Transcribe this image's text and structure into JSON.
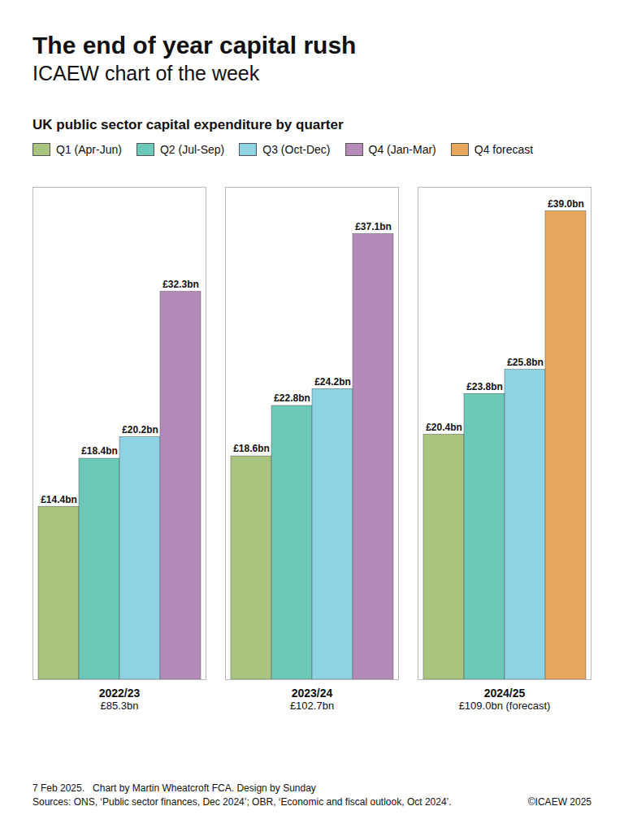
{
  "chart_data": {
    "type": "bar",
    "title": "The end of year capital rush",
    "subtitle": "ICAEW chart of the week",
    "heading": "UK public sector capital expenditure by quarter",
    "categories": [
      "2022/23",
      "2023/24",
      "2024/25"
    ],
    "totals": [
      "£85.3bn",
      "£102.7bn",
      "£109.0bn (forecast)"
    ],
    "series": [
      {
        "name": "Q1 (Apr-Jun)",
        "color": "#a9c47f",
        "values": [
          14.4,
          18.6,
          20.4
        ],
        "value_labels": [
          "£14.4bn",
          "£18.6bn",
          "£20.4bn"
        ]
      },
      {
        "name": "Q2 (Jul-Sep)",
        "color": "#6cc9b9",
        "values": [
          18.4,
          22.8,
          23.8
        ],
        "value_labels": [
          "£18.4bn",
          "£22.8bn",
          "£23.8bn"
        ]
      },
      {
        "name": "Q3 (Oct-Dec)",
        "color": "#8dd3e3",
        "values": [
          20.2,
          24.2,
          25.8
        ],
        "value_labels": [
          "£20.2bn",
          "£24.2bn",
          "£25.8bn"
        ]
      },
      {
        "name": "Q4 (Jan-Mar)",
        "color": "#b48ab8",
        "values": [
          32.3,
          37.1,
          null
        ],
        "value_labels": [
          "£32.3bn",
          "£37.1bn",
          null
        ]
      },
      {
        "name": "Q4 forecast",
        "color": "#e6a65c",
        "values": [
          null,
          null,
          39.0
        ],
        "value_labels": [
          null,
          null,
          "£39.0bn"
        ]
      }
    ],
    "ylim": [
      0,
      41
    ],
    "yticks": [],
    "grid": false,
    "legend": "top",
    "data_labels": true,
    "tick_labels": "x",
    "footer": [
      "7 Feb 2025.   Chart by Martin Wheatcroft FCA. Design by Sunday",
      "Sources: ONS, ‘Public sector finances, Dec 2024’; OBR, ‘Economic and fiscal outlook, Oct 2024’."
    ],
    "copyright": "©ICAEW 2025"
  }
}
